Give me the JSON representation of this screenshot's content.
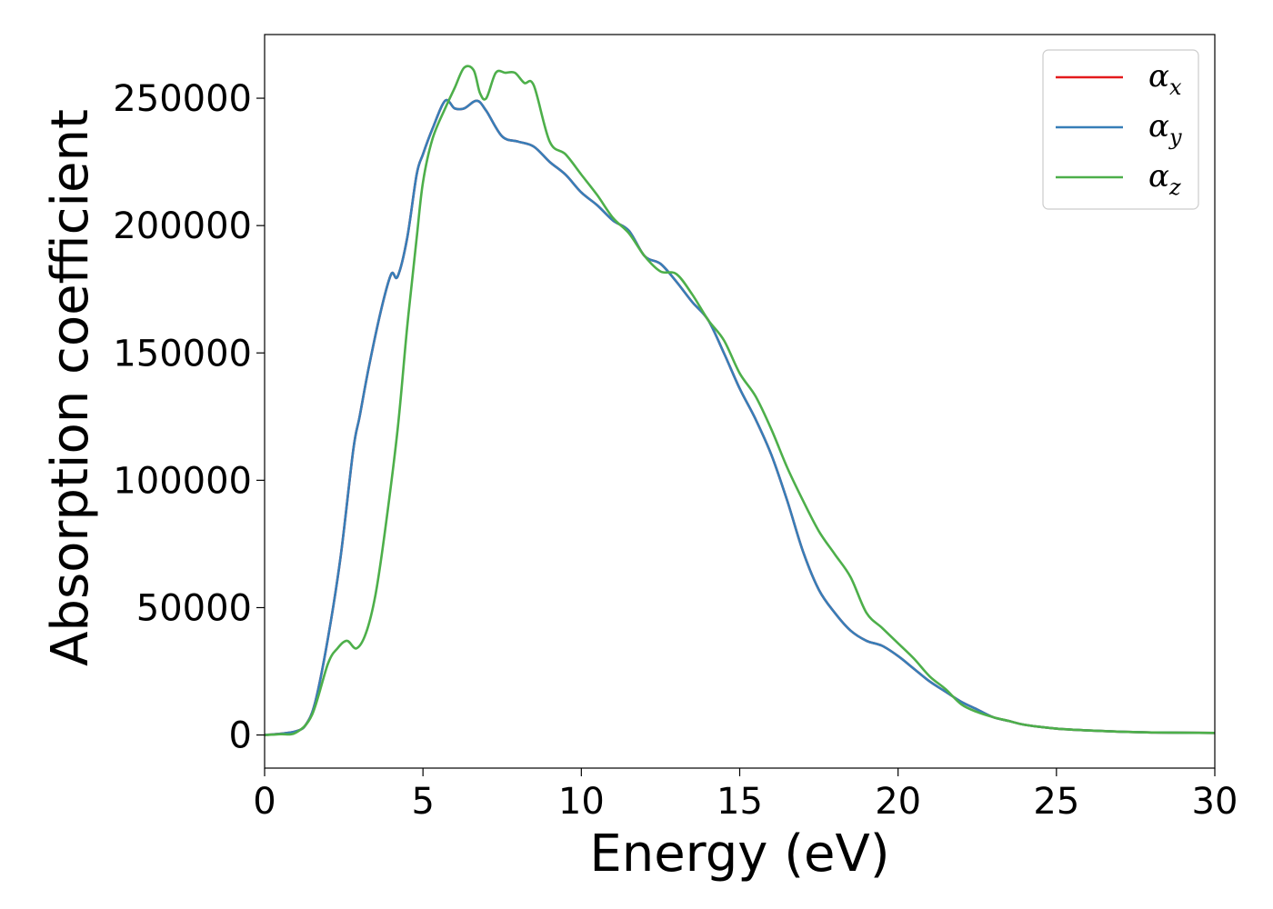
{
  "chart_data": {
    "type": "line",
    "xlabel": "Energy (eV)",
    "ylabel": "Absorption coefficient",
    "xlim": [
      0,
      30
    ],
    "ylim": [
      -13000,
      275000
    ],
    "x_ticks": [
      0,
      5,
      10,
      15,
      20,
      25,
      30
    ],
    "y_ticks": [
      0,
      50000,
      100000,
      150000,
      200000,
      250000
    ],
    "grid": false,
    "legend_position": "top-right",
    "series": [
      {
        "name": "α",
        "subscript": "x",
        "color": "#e41a1c",
        "x": [
          0,
          0.5,
          1.0,
          1.3,
          1.6,
          2.0,
          2.4,
          2.8,
          3.0,
          3.3,
          3.7,
          4.0,
          4.2,
          4.5,
          4.8,
          5.0,
          5.3,
          5.7,
          6.0,
          6.3,
          6.7,
          7.0,
          7.5,
          8.0,
          8.5,
          9.0,
          9.5,
          10.0,
          10.5,
          11.0,
          11.5,
          12.0,
          12.5,
          13.0,
          13.5,
          14.0,
          14.5,
          15.0,
          15.5,
          16.0,
          16.5,
          17.0,
          17.5,
          18.0,
          18.5,
          19.0,
          19.5,
          20.0,
          20.5,
          21.0,
          21.5,
          22.0,
          22.5,
          23.0,
          23.5,
          24.0,
          25.0,
          26.0,
          27.0,
          28.0,
          30.0
        ],
        "values": [
          0,
          500,
          1500,
          4000,
          13000,
          38000,
          70000,
          112000,
          125000,
          145000,
          168000,
          181000,
          180000,
          195000,
          220000,
          228000,
          238000,
          249000,
          246000,
          246000,
          249000,
          245000,
          235000,
          233000,
          231000,
          225000,
          220000,
          213000,
          208000,
          202000,
          198000,
          188000,
          185000,
          178000,
          170000,
          163000,
          150000,
          136000,
          124000,
          110000,
          92000,
          72000,
          57000,
          48000,
          41000,
          37000,
          35000,
          31000,
          26000,
          21000,
          17000,
          13000,
          10000,
          7000,
          5500,
          4000,
          2500,
          1800,
          1300,
          1000,
          800
        ]
      },
      {
        "name": "α",
        "subscript": "y",
        "color": "#377eb8",
        "x": [
          0,
          0.5,
          1.0,
          1.3,
          1.6,
          2.0,
          2.4,
          2.8,
          3.0,
          3.3,
          3.7,
          4.0,
          4.2,
          4.5,
          4.8,
          5.0,
          5.3,
          5.7,
          6.0,
          6.3,
          6.7,
          7.0,
          7.5,
          8.0,
          8.5,
          9.0,
          9.5,
          10.0,
          10.5,
          11.0,
          11.5,
          12.0,
          12.5,
          13.0,
          13.5,
          14.0,
          14.5,
          15.0,
          15.5,
          16.0,
          16.5,
          17.0,
          17.5,
          18.0,
          18.5,
          19.0,
          19.5,
          20.0,
          20.5,
          21.0,
          21.5,
          22.0,
          22.5,
          23.0,
          23.5,
          24.0,
          25.0,
          26.0,
          27.0,
          28.0,
          30.0
        ],
        "values": [
          0,
          500,
          1500,
          4000,
          13000,
          38000,
          70000,
          112000,
          125000,
          145000,
          168000,
          181000,
          180000,
          195000,
          220000,
          228000,
          238000,
          249000,
          246000,
          246000,
          249000,
          245000,
          235000,
          233000,
          231000,
          225000,
          220000,
          213000,
          208000,
          202000,
          198000,
          188000,
          185000,
          178000,
          170000,
          163000,
          150000,
          136000,
          124000,
          110000,
          92000,
          72000,
          57000,
          48000,
          41000,
          37000,
          35000,
          31000,
          26000,
          21000,
          17000,
          13000,
          10000,
          7000,
          5500,
          4000,
          2500,
          1800,
          1300,
          1000,
          800
        ]
      },
      {
        "name": "α",
        "subscript": "z",
        "color": "#4daf4a",
        "x": [
          0,
          0.5,
          1.0,
          1.5,
          2.0,
          2.3,
          2.6,
          2.9,
          3.2,
          3.5,
          3.8,
          4.2,
          4.5,
          4.8,
          5.0,
          5.3,
          5.7,
          6.0,
          6.3,
          6.6,
          6.8,
          7.0,
          7.3,
          7.6,
          7.9,
          8.2,
          8.5,
          9.0,
          9.5,
          10.0,
          10.5,
          11.0,
          11.5,
          12.0,
          12.5,
          13.0,
          13.5,
          14.0,
          14.5,
          15.0,
          15.5,
          16.0,
          16.5,
          17.0,
          17.5,
          18.0,
          18.5,
          19.0,
          19.5,
          20.0,
          20.5,
          21.0,
          21.5,
          22.0,
          22.5,
          23.0,
          23.5,
          24.0,
          25.0,
          26.0,
          27.0,
          28.0,
          30.0
        ],
        "values": [
          0,
          300,
          1000,
          8000,
          28000,
          34000,
          37000,
          34000,
          40000,
          55000,
          80000,
          120000,
          160000,
          195000,
          217000,
          234000,
          246000,
          254000,
          262000,
          261000,
          252000,
          250000,
          260000,
          260000,
          260000,
          256000,
          255000,
          233000,
          228000,
          220000,
          212000,
          203000,
          197000,
          188000,
          182000,
          181000,
          173000,
          163000,
          155000,
          142000,
          133000,
          120000,
          105000,
          92000,
          80000,
          71000,
          62000,
          48000,
          42000,
          36000,
          30000,
          23000,
          18000,
          12000,
          9000,
          7000,
          5500,
          4000,
          2500,
          1800,
          1300,
          1000,
          800
        ]
      }
    ]
  }
}
